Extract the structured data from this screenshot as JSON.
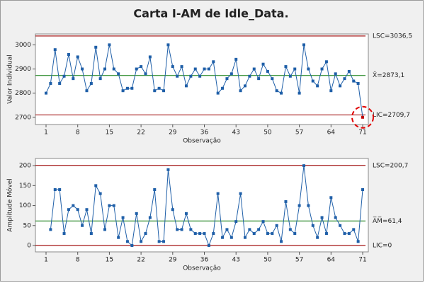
{
  "title": "Carta I-AM de Idle_Data.",
  "chart_data": [
    {
      "type": "line",
      "xlabel": "Observação",
      "ylabel": "Valor Individual",
      "x": [
        1,
        2,
        3,
        4,
        5,
        6,
        7,
        8,
        9,
        10,
        11,
        12,
        13,
        14,
        15,
        16,
        17,
        18,
        19,
        20,
        21,
        22,
        23,
        24,
        25,
        26,
        27,
        28,
        29,
        30,
        31,
        32,
        33,
        34,
        35,
        36,
        37,
        38,
        39,
        40,
        41,
        42,
        43,
        44,
        45,
        46,
        47,
        48,
        49,
        50,
        51,
        52,
        53,
        54,
        55,
        56,
        57,
        58,
        59,
        60,
        61,
        62,
        63,
        64,
        65,
        66,
        67,
        68,
        69,
        70,
        71
      ],
      "series": [
        {
          "color": "#1f5fa8",
          "values": [
            2800,
            2840,
            2980,
            2840,
            2870,
            2960,
            2860,
            2950,
            2900,
            2810,
            2840,
            2990,
            2860,
            2900,
            3000,
            2900,
            2880,
            2810,
            2820,
            2820,
            2900,
            2910,
            2880,
            2950,
            2810,
            2820,
            2810,
            3000,
            2910,
            2870,
            2910,
            2830,
            2870,
            2900,
            2870,
            2900,
            2900,
            2930,
            2800,
            2820,
            2860,
            2880,
            2940,
            2810,
            2830,
            2870,
            2900,
            2860,
            2920,
            2890,
            2860,
            2810,
            2800,
            2910,
            2870,
            2900,
            2800,
            3000,
            2900,
            2850,
            2830,
            2900,
            2930,
            2810,
            2880,
            2830,
            2860,
            2890,
            2850,
            2840,
            2700
          ]
        }
      ],
      "limits": [
        {
          "value": 3036.5,
          "label": "LSC=3036,5",
          "color": "#a31515"
        },
        {
          "value": 2873.1,
          "label": "X̄=2873,1",
          "color": "#2e8b2e"
        },
        {
          "value": 2709.7,
          "label": "LIC=2709,7",
          "color": "#a31515"
        }
      ],
      "xlim": [
        -1.35,
        72.25
      ],
      "xticks": [
        1,
        8,
        15,
        22,
        29,
        36,
        43,
        50,
        57,
        64,
        71
      ],
      "ylim": [
        2670,
        3045
      ],
      "yticks": [
        2700,
        2800,
        2900,
        3000
      ]
    },
    {
      "type": "line",
      "xlabel": "Observação",
      "ylabel": "Amplitude Móvel",
      "x": [
        1,
        2,
        3,
        4,
        5,
        6,
        7,
        8,
        9,
        10,
        11,
        12,
        13,
        14,
        15,
        16,
        17,
        18,
        19,
        20,
        21,
        22,
        23,
        24,
        25,
        26,
        27,
        28,
        29,
        30,
        31,
        32,
        33,
        34,
        35,
        36,
        37,
        38,
        39,
        40,
        41,
        42,
        43,
        44,
        45,
        46,
        47,
        48,
        49,
        50,
        51,
        52,
        53,
        54,
        55,
        56,
        57,
        58,
        59,
        60,
        61,
        62,
        63,
        64,
        65,
        66,
        67,
        68,
        69,
        70,
        71
      ],
      "series": [
        {
          "color": "#1f5fa8",
          "values": [
            null,
            40,
            140,
            140,
            30,
            90,
            100,
            90,
            50,
            90,
            30,
            150,
            130,
            40,
            100,
            100,
            20,
            70,
            10,
            0,
            80,
            10,
            30,
            70,
            140,
            10,
            10,
            190,
            90,
            40,
            40,
            80,
            40,
            30,
            30,
            30,
            0,
            30,
            130,
            20,
            40,
            20,
            60,
            130,
            20,
            40,
            30,
            40,
            60,
            30,
            30,
            50,
            10,
            110,
            40,
            30,
            100,
            200,
            100,
            50,
            20,
            70,
            30,
            120,
            70,
            50,
            30,
            30,
            40,
            10,
            140
          ]
        }
      ],
      "limits": [
        {
          "value": 200.7,
          "label": "LSC=200,7",
          "color": "#a31515"
        },
        {
          "value": 61.4,
          "label": "A̅M̅=61,4",
          "color": "#2e8b2e"
        },
        {
          "value": 0,
          "label": "LIC=0",
          "color": "#a31515"
        }
      ],
      "xlim": [
        -1.35,
        72.25
      ],
      "xticks": [
        1,
        8,
        15,
        22,
        29,
        36,
        43,
        50,
        57,
        64,
        71
      ],
      "ylim": [
        -16,
        218
      ],
      "yticks": [
        0,
        50,
        100,
        150,
        200
      ]
    }
  ]
}
